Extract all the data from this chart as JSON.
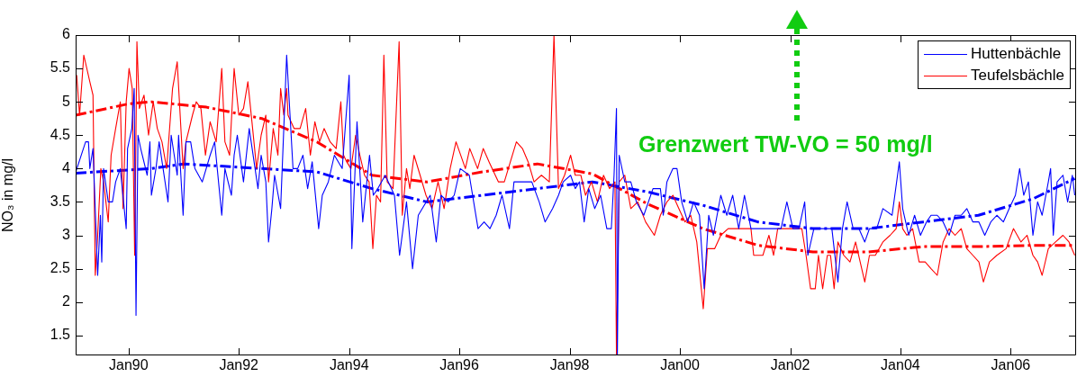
{
  "chart_data": {
    "type": "line",
    "ylabel": "NO₃ in mg/l",
    "annotations": [
      "Grenzwert TW-VO = 50 mg/l"
    ],
    "legend": "top right",
    "marker": "none",
    "grid": false,
    "xlim": [
      "1989-01-15",
      "2007-03-10"
    ],
    "ylim": [
      1.2,
      6
    ],
    "xticks": [
      {
        "value": "1990-01",
        "label": "Jan90"
      },
      {
        "value": "1992-01",
        "label": "Jan92"
      },
      {
        "value": "1994-01",
        "label": "Jan94"
      },
      {
        "value": "1996-01",
        "label": "Jan96"
      },
      {
        "value": "1998-01",
        "label": "Jan98"
      },
      {
        "value": "2000-01",
        "label": "Jan00"
      },
      {
        "value": "2002-01",
        "label": "Jan02"
      },
      {
        "value": "2004-01",
        "label": "Jan04"
      },
      {
        "value": "2006-01",
        "label": "Jan06"
      }
    ],
    "yticks": [
      1.5,
      2,
      2.5,
      3,
      3.5,
      4,
      4.5,
      5,
      5.5,
      6
    ],
    "series": [
      {
        "name": "Huttenbächle",
        "color": "#0000ff",
        "line_style": "solid",
        "x": [
          "1989-01-16",
          "1989-03-22",
          "1989-04-10",
          "1989-04-19",
          "1989-05-10",
          "1989-06-10",
          "1989-06-28",
          "1989-07-07",
          "1989-07-19",
          "1989-08-19",
          "1989-09-16",
          "1989-10-07",
          "1989-11-07",
          "1989-12-16",
          "1989-12-25",
          "1990-01-22",
          "1990-02-07",
          "1990-02-19",
          "1990-03-04",
          "1990-03-22",
          "1990-05-04",
          "1990-05-22",
          "1990-06-01",
          "1990-07-01",
          "1990-07-22",
          "1990-09-19",
          "1990-10-10",
          "1990-11-19",
          "1990-11-28",
          "1990-12-28",
          "1991-01-16",
          "1991-02-16",
          "1991-03-16",
          "1991-05-04",
          "1991-06-25",
          "1991-07-25",
          "1991-09-10",
          "1991-10-01",
          "1991-10-22",
          "1991-11-13",
          "1991-12-01",
          "1991-12-22",
          "1992-02-01",
          "1992-03-10",
          "1992-05-07",
          "1992-05-28",
          "1992-06-28",
          "1992-07-16",
          "1992-08-07",
          "1992-08-25",
          "1992-10-04",
          "1992-10-25",
          "1992-11-13",
          "1992-12-25",
          "1993-01-25",
          "1993-03-01",
          "1993-04-01",
          "1993-05-01",
          "1993-06-13",
          "1993-07-07",
          "1993-08-16",
          "1993-09-25",
          "1993-11-16",
          "1994-01-01",
          "1994-01-19",
          "1994-02-22",
          "1994-04-01",
          "1994-05-16",
          "1994-06-10",
          "1994-07-10",
          "1994-08-28",
          "1994-10-28",
          "1994-12-01",
          "1995-01-16",
          "1995-02-25",
          "1995-04-04",
          "1995-06-22",
          "1995-08-01",
          "1995-09-01",
          "1995-10-19",
          "1995-11-28",
          "1996-01-07",
          "1996-03-07",
          "1996-05-04",
          "1996-06-13",
          "1996-07-22",
          "1996-09-01",
          "1996-10-10",
          "1996-11-28",
          "1996-12-28",
          "1997-02-28",
          "1997-04-25",
          "1997-06-13",
          "1997-07-22",
          "1997-09-10",
          "1997-10-19",
          "1997-11-19",
          "1998-01-07",
          "1998-02-07",
          "1998-03-07",
          "1998-04-07",
          "1998-05-07",
          "1998-06-16",
          "1998-07-25",
          "1998-09-04",
          "1998-10-04",
          "1998-10-22",
          "1998-11-07",
          "1998-11-13",
          "1998-11-25",
          "1999-01-01",
          "1999-02-10",
          "1999-03-19",
          "1999-05-07",
          "1999-07-07",
          "1999-08-25",
          "1999-09-13",
          "1999-10-07",
          "1999-11-16",
          "1999-12-13",
          "2000-01-13",
          "2000-02-22",
          "2000-04-01",
          "2000-05-10",
          "2000-06-10",
          "2000-07-10",
          "2000-08-10",
          "2000-09-28",
          "2000-11-07",
          "2000-12-16",
          "2001-01-25",
          "2001-03-04",
          "2001-04-16",
          "2001-08-13",
          "2001-11-01",
          "2001-12-10",
          "2002-01-19",
          "2002-02-28",
          "2002-04-07",
          "2002-04-28",
          "2002-06-07",
          "2002-08-04",
          "2002-10-04",
          "2002-11-13",
          "2002-12-13",
          "2003-01-13",
          "2003-02-22",
          "2003-04-01",
          "2003-05-10",
          "2003-06-10",
          "2003-07-28",
          "2003-09-07",
          "2003-11-07",
          "2003-12-25",
          "2004-01-16",
          "2004-02-25",
          "2004-04-04",
          "2004-05-13",
          "2004-06-22",
          "2004-07-22",
          "2004-09-01",
          "2004-10-10",
          "2004-11-19",
          "2004-12-28",
          "2005-02-07",
          "2005-03-16",
          "2005-04-25",
          "2005-06-04",
          "2005-07-13",
          "2005-08-22",
          "2005-10-01",
          "2005-11-13",
          "2005-12-22",
          "2006-02-01",
          "2006-03-01",
          "2006-03-28",
          "2006-04-28",
          "2006-05-28",
          "2006-06-28",
          "2006-07-28",
          "2006-09-07",
          "2006-09-22",
          "2006-10-10",
          "2006-11-04",
          "2006-12-13",
          "2007-01-13",
          "2007-02-13",
          "2007-03-01"
        ],
        "values": [
          3.95,
          4.4,
          4.4,
          4.0,
          4.3,
          2.4,
          3.3,
          2.6,
          4.0,
          3.5,
          3.5,
          3.8,
          4.0,
          3.1,
          4.3,
          4.6,
          5.2,
          1.8,
          4.5,
          4.3,
          3.9,
          4.4,
          3.6,
          4.0,
          4.4,
          3.5,
          4.5,
          3.9,
          4.5,
          3.3,
          4.4,
          4.4,
          4.0,
          3.8,
          4.2,
          4.4,
          3.3,
          4.0,
          3.8,
          3.6,
          4.2,
          4.5,
          3.8,
          4.6,
          3.7,
          4.2,
          3.8,
          2.9,
          3.4,
          3.9,
          3.4,
          4.6,
          5.7,
          4.0,
          4.0,
          4.2,
          3.7,
          4.1,
          3.1,
          3.6,
          3.8,
          4.2,
          4.0,
          5.4,
          2.8,
          4.7,
          3.2,
          4.2,
          3.6,
          3.7,
          3.9,
          3.6,
          2.7,
          3.5,
          2.5,
          3.3,
          3.6,
          2.9,
          3.6,
          3.5,
          3.6,
          4.0,
          3.9,
          3.1,
          3.2,
          3.1,
          3.3,
          3.6,
          3.1,
          3.8,
          3.8,
          3.8,
          3.5,
          3.2,
          3.4,
          3.6,
          3.8,
          3.9,
          3.7,
          3.8,
          3.2,
          3.7,
          3.4,
          3.6,
          3.1,
          3.1,
          3.9,
          4.9,
          1.2,
          4.2,
          3.8,
          3.8,
          3.5,
          3.3,
          3.7,
          3.7,
          3.3,
          3.8,
          4.0,
          4.0,
          3.5,
          3.2,
          3.5,
          3.3,
          2.2,
          3.3,
          3.0,
          3.6,
          3.3,
          3.6,
          3.1,
          3.6,
          3.1,
          3.1,
          3.1,
          3.5,
          3.1,
          3.1,
          3.5,
          2.7,
          3.1,
          3.1,
          3.1,
          2.3,
          3.1,
          3.5,
          3.1,
          3.1,
          2.9,
          3.1,
          3.1,
          3.4,
          3.3,
          4.1,
          3.4,
          3.0,
          3.3,
          3.0,
          3.2,
          3.3,
          3.3,
          3.2,
          3.0,
          3.3,
          3.3,
          3.4,
          3.2,
          3.2,
          3.0,
          3.2,
          3.3,
          3.2,
          3.4,
          3.6,
          4.0,
          3.6,
          3.8,
          3.0,
          3.5,
          3.3,
          3.8,
          4.0,
          3.0,
          3.8,
          3.9,
          3.5,
          3.9,
          3.6
        ]
      },
      {
        "name": "Teufelsbächle",
        "color": "#ff0000",
        "line_style": "solid",
        "x": [
          "1989-01-22",
          "1989-02-10",
          "1989-03-10",
          "1989-04-19",
          "1989-05-10",
          "1989-05-25",
          "1989-06-10",
          "1989-07-01",
          "1989-07-19",
          "1989-08-19",
          "1989-09-07",
          "1989-10-07",
          "1989-11-07",
          "1989-11-25",
          "1989-12-16",
          "1990-01-04",
          "1990-01-25",
          "1990-02-10",
          "1990-02-25",
          "1990-03-13",
          "1990-04-13",
          "1990-05-13",
          "1990-06-13",
          "1990-07-10",
          "1990-08-10",
          "1990-09-10",
          "1990-10-19",
          "1990-11-19",
          "1990-12-28",
          "1991-01-16",
          "1991-02-28",
          "1991-03-25",
          "1991-04-25",
          "1991-05-25",
          "1991-06-25",
          "1991-08-04",
          "1991-09-10",
          "1991-10-01",
          "1991-11-01",
          "1991-12-01",
          "1992-01-01",
          "1992-02-01",
          "1992-03-01",
          "1992-03-28",
          "1992-04-28",
          "1992-05-28",
          "1992-06-28",
          "1992-07-16",
          "1992-08-16",
          "1992-09-16",
          "1992-10-04",
          "1992-10-25",
          "1992-11-13",
          "1992-11-22",
          "1993-01-01",
          "1993-02-10",
          "1993-03-19",
          "1993-04-19",
          "1993-05-19",
          "1993-06-19",
          "1993-07-19",
          "1993-08-28",
          "1993-10-07",
          "1993-11-07",
          "1993-11-25",
          "1993-12-16",
          "1994-01-13",
          "1994-02-13",
          "1994-03-13",
          "1994-04-13",
          "1994-05-13",
          "1994-06-07",
          "1994-07-01",
          "1994-07-28",
          "1994-08-19",
          "1994-09-10",
          "1994-10-19",
          "1994-11-28",
          "1994-12-19",
          "1995-01-16",
          "1995-02-07",
          "1995-03-07",
          "1995-04-16",
          "1995-05-25",
          "1995-07-04",
          "1995-08-13",
          "1995-09-22",
          "1995-11-01",
          "1995-12-10",
          "1996-02-10",
          "1996-03-10",
          "1996-05-01",
          "1996-06-07",
          "1996-07-16",
          "1996-09-16",
          "1996-10-25",
          "1996-12-04",
          "1997-01-13",
          "1997-02-22",
          "1997-04-01",
          "1997-05-10",
          "1997-06-28",
          "1997-08-19",
          "1997-09-19",
          "1997-10-19",
          "1997-11-28",
          "1998-01-07",
          "1998-02-07",
          "1998-03-16",
          "1998-04-16",
          "1998-05-25",
          "1998-07-04",
          "1998-08-13",
          "1998-09-22",
          "1998-10-28",
          "1998-11-07",
          "1998-11-25",
          "1999-01-01",
          "1999-02-10",
          "1999-03-28",
          "1999-05-19",
          "1999-07-16",
          "1999-08-25",
          "1999-10-07",
          "1999-11-16",
          "1999-12-25",
          "2000-02-04",
          "2000-03-13",
          "2000-04-22",
          "2000-06-04",
          "2000-07-01",
          "2000-08-19",
          "2000-09-28",
          "2000-11-16",
          "2001-01-25",
          "2001-04-16",
          "2001-05-04",
          "2001-07-04",
          "2001-08-13",
          "2001-09-13",
          "2001-10-10",
          "2001-12-10",
          "2002-03-19",
          "2002-04-16",
          "2002-05-16",
          "2002-06-16",
          "2002-07-07",
          "2002-08-04",
          "2002-09-04",
          "2002-09-25",
          "2002-10-19",
          "2002-11-13",
          "2002-12-22",
          "2003-02-01",
          "2003-03-10",
          "2003-05-10",
          "2003-06-10",
          "2003-07-19",
          "2003-09-07",
          "2003-10-25",
          "2003-12-04",
          "2003-12-25",
          "2004-01-16",
          "2004-02-13",
          "2004-03-22",
          "2004-05-04",
          "2004-06-13",
          "2004-07-22",
          "2004-09-01",
          "2004-10-10",
          "2004-11-19",
          "2004-12-28",
          "2005-02-07",
          "2005-03-16",
          "2005-04-25",
          "2005-06-04",
          "2005-07-04",
          "2005-08-13",
          "2005-10-01",
          "2005-12-01",
          "2006-01-19",
          "2006-03-10",
          "2006-04-19",
          "2006-05-28",
          "2006-06-28",
          "2006-07-28",
          "2006-09-07",
          "2006-10-25",
          "2006-12-13",
          "2007-01-22",
          "2007-03-01"
        ],
        "values": [
          5.4,
          4.8,
          5.7,
          5.3,
          5.1,
          2.4,
          3.0,
          4.0,
          3.8,
          3.2,
          4.2,
          4.6,
          5.0,
          3.4,
          5.0,
          5.5,
          5.2,
          2.7,
          5.9,
          4.9,
          5.1,
          4.5,
          5.0,
          4.6,
          4.4,
          4.0,
          5.2,
          5.6,
          4.0,
          4.4,
          4.8,
          5.0,
          4.9,
          4.2,
          4.7,
          4.4,
          5.5,
          4.4,
          4.2,
          5.5,
          4.8,
          4.9,
          5.3,
          4.7,
          4.0,
          4.5,
          4.8,
          3.8,
          4.6,
          4.2,
          5.2,
          4.8,
          5.2,
          4.8,
          4.6,
          4.6,
          4.9,
          4.2,
          4.7,
          4.4,
          4.6,
          4.4,
          4.3,
          5.0,
          4.2,
          4.1,
          4.0,
          4.5,
          4.2,
          3.9,
          3.8,
          2.8,
          3.6,
          3.5,
          5.7,
          3.8,
          3.7,
          5.9,
          3.3,
          4.0,
          3.7,
          4.2,
          3.9,
          3.6,
          3.4,
          3.8,
          3.4,
          4.0,
          4.4,
          4.0,
          4.3,
          4.0,
          4.3,
          4.1,
          3.8,
          3.8,
          4.1,
          4.4,
          4.3,
          4.1,
          3.8,
          3.9,
          3.8,
          6.0,
          3.7,
          3.9,
          4.2,
          3.9,
          3.9,
          3.6,
          3.8,
          3.5,
          3.9,
          3.7,
          3.8,
          1.2,
          3.8,
          3.9,
          3.4,
          3.5,
          3.2,
          3.0,
          3.3,
          3.5,
          3.6,
          3.4,
          3.2,
          3.3,
          2.9,
          1.9,
          2.8,
          2.8,
          3.0,
          3.1,
          3.1,
          3.1,
          2.7,
          2.7,
          3.0,
          2.7,
          3.1,
          3.1,
          3.1,
          2.7,
          2.2,
          2.2,
          2.7,
          2.2,
          2.7,
          2.7,
          2.2,
          2.9,
          2.7,
          2.6,
          2.9,
          2.3,
          2.7,
          2.7,
          2.9,
          3.0,
          3.1,
          3.5,
          3.1,
          3.0,
          3.1,
          2.6,
          2.6,
          2.5,
          2.4,
          2.9,
          3.1,
          3.0,
          3.1,
          2.8,
          2.7,
          2.6,
          2.3,
          2.6,
          2.7,
          2.8,
          3.1,
          2.9,
          3.0,
          2.7,
          2.6,
          2.4,
          2.8,
          2.9,
          3.0,
          2.9,
          2.7
        ]
      },
      {
        "color": "#0000ff",
        "line_style": "dashed",
        "x": [
          "1989-01-15",
          "1990-06-01",
          "1991-01-01",
          "1992-06-01",
          "1993-06-01",
          "1994-06-01",
          "1995-06-01",
          "1996-06-01",
          "1997-06-01",
          "1998-06-01",
          "1999-06-01",
          "2000-06-01",
          "2001-06-01",
          "2002-06-01",
          "2003-06-01",
          "2004-06-01",
          "2005-06-01",
          "2006-06-01",
          "2007-03-01"
        ],
        "values": [
          3.93,
          4.0,
          4.07,
          4.0,
          3.95,
          3.7,
          3.5,
          3.6,
          3.7,
          3.8,
          3.65,
          3.45,
          3.2,
          3.1,
          3.1,
          3.2,
          3.3,
          3.55,
          3.85
        ]
      },
      {
        "color": "#ff0000",
        "line_style": "dashed",
        "x": [
          "1989-01-15",
          "1990-01-01",
          "1990-06-01",
          "1991-06-01",
          "1992-06-01",
          "1993-06-01",
          "1994-06-01",
          "1995-06-01",
          "1996-06-01",
          "1997-06-01",
          "1998-06-01",
          "1999-06-01",
          "2000-06-01",
          "2001-06-01",
          "2002-06-01",
          "2003-06-01",
          "2004-06-01",
          "2005-06-01",
          "2006-06-01",
          "2007-03-01"
        ],
        "values": [
          4.8,
          4.97,
          5.0,
          4.92,
          4.75,
          4.4,
          3.9,
          3.8,
          3.95,
          4.07,
          3.92,
          3.47,
          3.1,
          2.85,
          2.75,
          2.75,
          2.83,
          2.83,
          2.85,
          2.85
        ]
      }
    ]
  }
}
